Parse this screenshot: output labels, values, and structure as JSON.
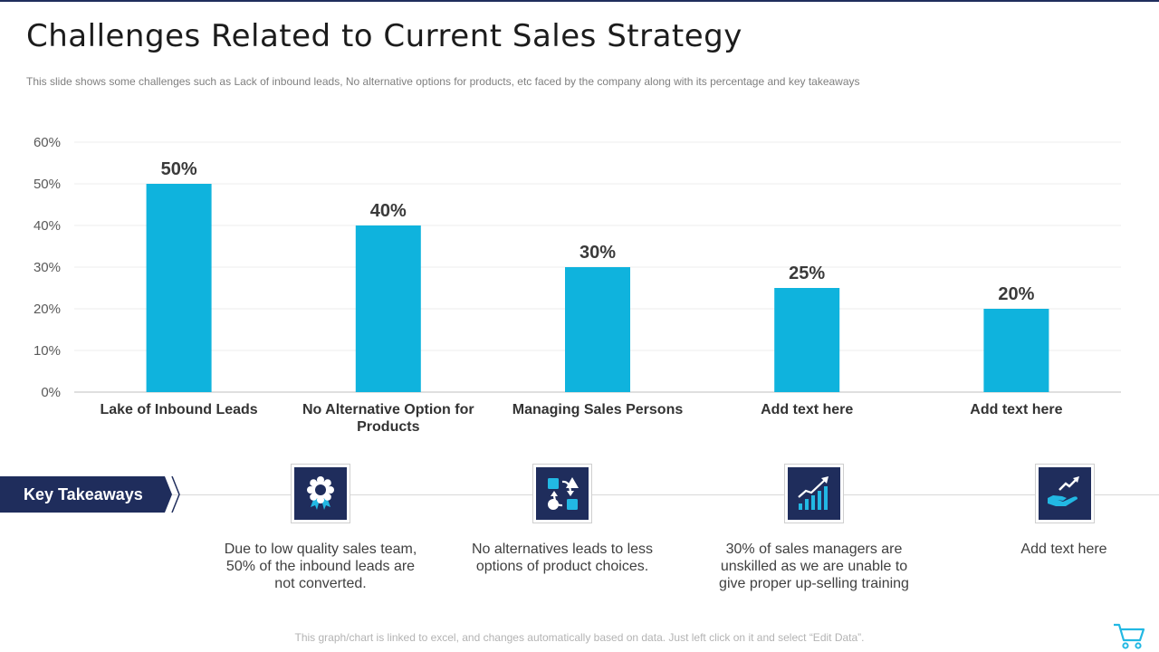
{
  "slide": {
    "title": "Challenges Related to Current Sales Strategy",
    "subtitle": "This slide shows some challenges such as Lack of inbound leads, No alternative  options for products, etc faced by the company along with its percentage and key takeaways",
    "footer_note": "This graph/chart is linked to excel, and changes automatically based on data. Just left click on it and select “Edit Data”."
  },
  "colors": {
    "navy": "#1f2d5c",
    "bar": "#0fb3dd",
    "icon_accent": "#22b8e3"
  },
  "chart_data": {
    "type": "bar",
    "categories": [
      "Lake of Inbound Leads",
      "No Alternative Option for Products",
      "Managing Sales Persons",
      "Add text here",
      "Add text here"
    ],
    "category_lines": [
      [
        "Lake of Inbound Leads"
      ],
      [
        "No Alternative Option for",
        "Products"
      ],
      [
        "Managing Sales Persons"
      ],
      [
        "Add text here"
      ],
      [
        "Add text here"
      ]
    ],
    "values": [
      50,
      40,
      30,
      25,
      20
    ],
    "data_labels": [
      "50%",
      "40%",
      "30%",
      "25%",
      "20%"
    ],
    "yticks": [
      "0%",
      "10%",
      "20%",
      "30%",
      "40%",
      "50%",
      "60%"
    ],
    "ylim": [
      0,
      60
    ],
    "grid": true,
    "legend": "none"
  },
  "takeaways": {
    "label": "Key Takeaways",
    "items": [
      {
        "icon": "award-badge-icon",
        "text": "Due to low quality sales team, 50% of the inbound leads are not converted."
      },
      {
        "icon": "exchange-shapes-icon",
        "text": "No alternatives leads to less options of product choices."
      },
      {
        "icon": "growth-chart-icon",
        "text": "30% of sales managers are unskilled as we are unable to give proper up-selling training"
      },
      {
        "icon": "hand-growth-icon",
        "text": "Add text here"
      }
    ]
  }
}
